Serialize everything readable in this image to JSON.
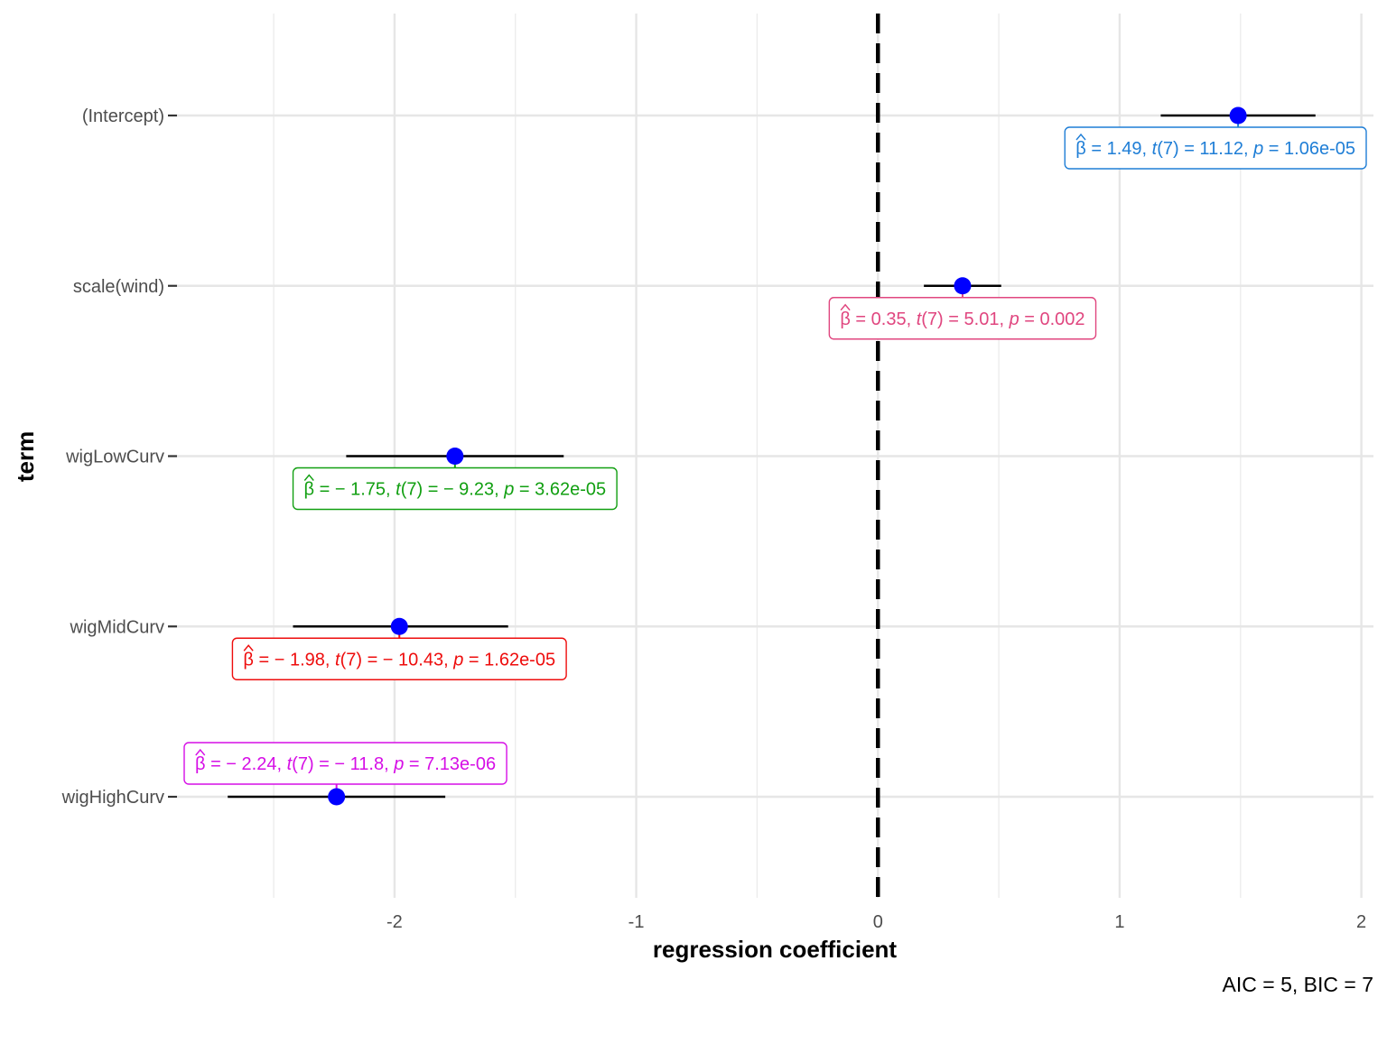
{
  "chart_data": {
    "type": "scatter",
    "xlabel": "regression coefficient",
    "ylabel": "term",
    "xlim": [
      -2.9,
      2.05
    ],
    "x_ticks": [
      -2,
      -1,
      0,
      1,
      2
    ],
    "x_tick_labels": [
      "-2",
      "-1",
      "0",
      "1",
      "2"
    ],
    "grid": true,
    "reference_line": 0,
    "caption": "AIC = 5, BIC = 7",
    "point_color": "#0000ff",
    "terms": [
      {
        "term": "(Intercept)",
        "estimate": 1.49,
        "conf_low": 1.17,
        "conf_high": 1.81,
        "color": "#1f7ed6",
        "label": {
          "beta": "1.49",
          "t": "11.12",
          "p": "1.06e-05",
          "position": "below"
        }
      },
      {
        "term": "scale(wind)",
        "estimate": 0.35,
        "conf_low": 0.19,
        "conf_high": 0.51,
        "color": "#e0467f",
        "label": {
          "beta": "0.35",
          "t": "5.01",
          "p": "0.002",
          "position": "below"
        }
      },
      {
        "term": "wigLowCurv",
        "estimate": -1.75,
        "conf_low": -2.2,
        "conf_high": -1.3,
        "color": "#119f11",
        "label": {
          "beta": "− 1.75",
          "t": "− 9.23",
          "p": "3.62e-05",
          "position": "below"
        }
      },
      {
        "term": "wigMidCurv",
        "estimate": -1.98,
        "conf_low": -2.42,
        "conf_high": -1.53,
        "color": "#ee0d0d",
        "label": {
          "beta": "− 1.98",
          "t": "− 10.43",
          "p": "1.62e-05",
          "position": "below"
        }
      },
      {
        "term": "wigHighCurv",
        "estimate": -2.24,
        "conf_low": -2.69,
        "conf_high": -1.79,
        "color": "#d60fe6",
        "label": {
          "beta": "− 2.24",
          "t": "− 11.8",
          "p": "7.13e-06",
          "position": "above"
        }
      }
    ]
  }
}
